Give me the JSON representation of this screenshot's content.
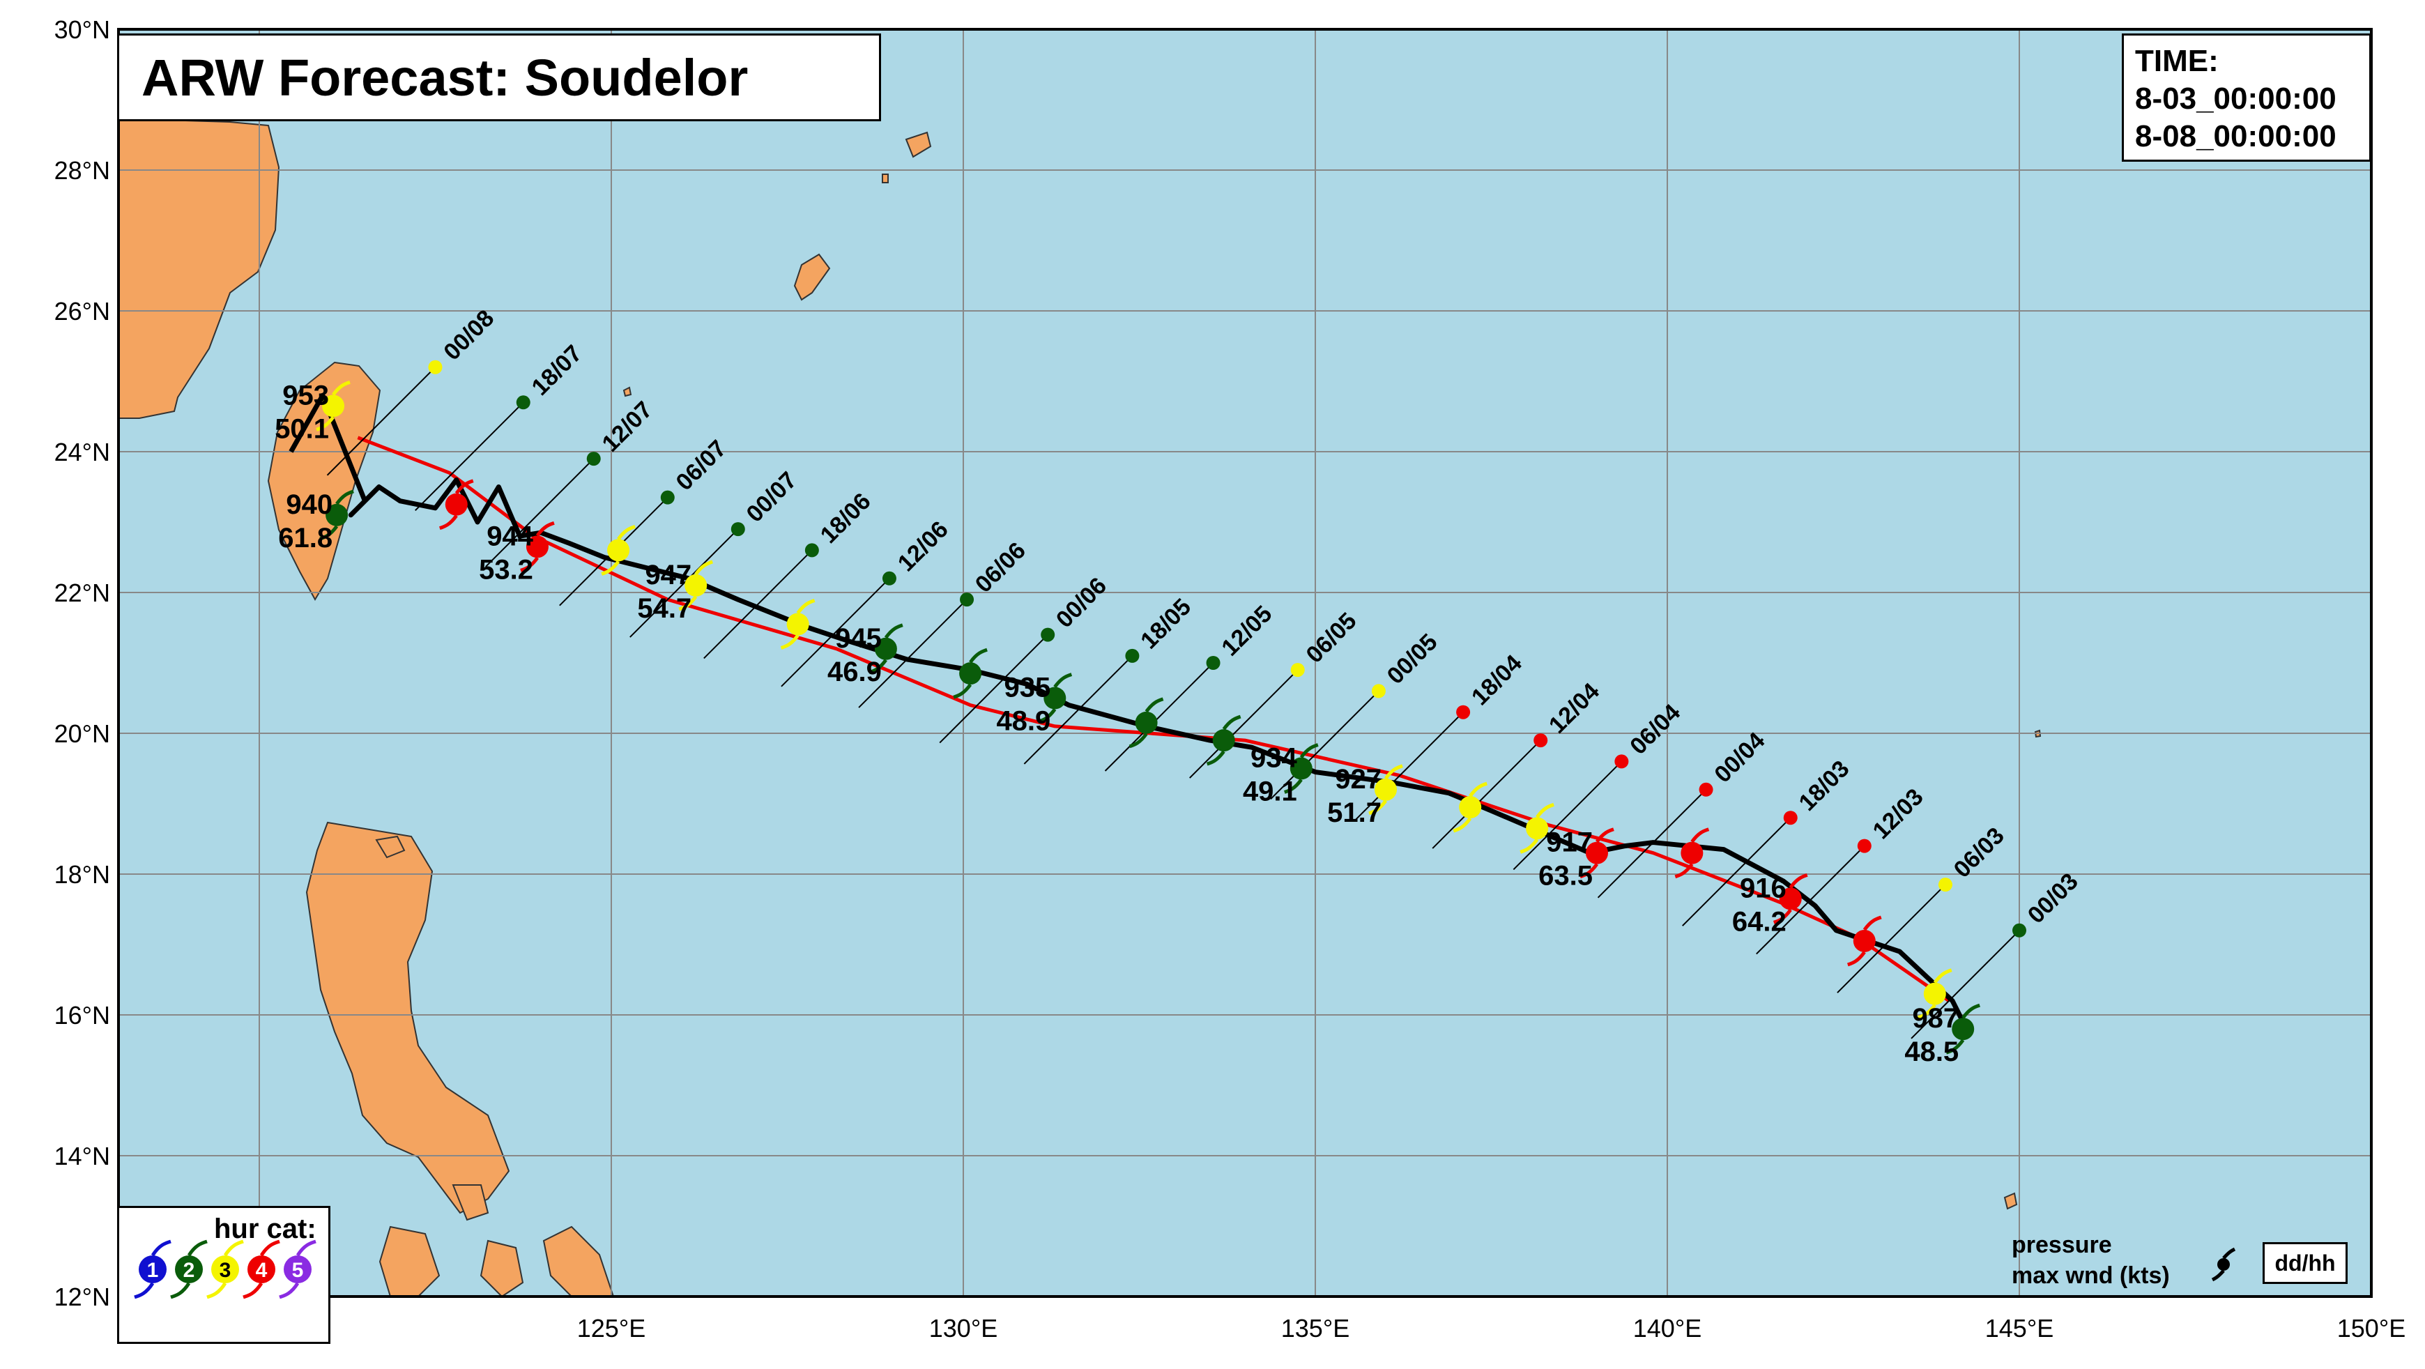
{
  "title": "ARW Forecast: Soudelor",
  "time_box": {
    "label": "TIME:",
    "start": "8-03_00:00:00",
    "end": "8-08_00:00:00"
  },
  "lat_labels": [
    "12°N",
    "14°N",
    "16°N",
    "18°N",
    "20°N",
    "22°N",
    "24°N",
    "26°N",
    "28°N",
    "30°N"
  ],
  "lon_labels": [
    "120°E",
    "125°E",
    "130°E",
    "135°E",
    "140°E",
    "145°E",
    "150°E"
  ],
  "legend": {
    "title": "hur cat:",
    "categories": [
      "1",
      "2",
      "3",
      "4",
      "5"
    ],
    "category_colors": [
      "#1010d0",
      "#0a5c0a",
      "#f4f400",
      "#ee0000",
      "#8a2be2"
    ]
  },
  "key": {
    "line1": "pressure",
    "line2": "max wnd (kts)",
    "time_fmt": "dd/hh"
  },
  "colors": {
    "ocean": "#add8e6",
    "land": "#f4a460",
    "grid": "#888888",
    "forecast_track": "#000000",
    "best_track": "#ee0000"
  },
  "forecast_points": [
    {
      "time": "00/03",
      "lat": 15.8,
      "lon": 144.2,
      "cat": 2,
      "pressure": "987",
      "wind": "48.5"
    },
    {
      "time": "06/03",
      "lat": 16.3,
      "lon": 143.8,
      "cat": 3
    },
    {
      "time": "12/03",
      "lat": 17.05,
      "lon": 142.8,
      "cat": 4
    },
    {
      "time": "18/03",
      "lat": 17.65,
      "lon": 141.75,
      "cat": 4,
      "pressure": "916",
      "wind": "64.2"
    },
    {
      "time": "00/04",
      "lat": 18.3,
      "lon": 140.35,
      "cat": 4
    },
    {
      "time": "06/04",
      "lat": 18.3,
      "lon": 139.0,
      "cat": 4,
      "pressure": "917",
      "wind": "63.5"
    },
    {
      "time": "12/04",
      "lat": 18.65,
      "lon": 138.15,
      "cat": 3
    },
    {
      "time": "18/04",
      "lat": 18.95,
      "lon": 137.2,
      "cat": 3
    },
    {
      "time": "00/05",
      "lat": 19.2,
      "lon": 136.0,
      "cat": 3,
      "pressure": "927",
      "wind": "51.7"
    },
    {
      "time": "06/05",
      "lat": 19.5,
      "lon": 134.8,
      "cat": 2,
      "pressure": "934",
      "wind": "49.1"
    },
    {
      "time": "12/05",
      "lat": 19.9,
      "lon": 133.7,
      "cat": 2
    },
    {
      "time": "18/05",
      "lat": 20.15,
      "lon": 132.6,
      "cat": 2
    },
    {
      "time": "00/06",
      "lat": 20.5,
      "lon": 131.3,
      "cat": 2,
      "pressure": "935",
      "wind": "48.9"
    },
    {
      "time": "06/06",
      "lat": 20.85,
      "lon": 130.1,
      "cat": 2
    },
    {
      "time": "12/06",
      "lat": 21.2,
      "lon": 128.9,
      "cat": 2,
      "pressure": "945",
      "wind": "46.9"
    },
    {
      "time": "18/06",
      "lat": 21.55,
      "lon": 127.65,
      "cat": 3
    },
    {
      "time": "00/07",
      "lat": 22.1,
      "lon": 126.2,
      "cat": 3,
      "pressure": "947",
      "wind": "54.7"
    },
    {
      "time": "06/07",
      "lat": 22.6,
      "lon": 125.1,
      "cat": 3
    },
    {
      "time": "12/07",
      "lat": 22.65,
      "lon": 123.95,
      "cat": 4,
      "pressure": "944",
      "wind": "53.2"
    },
    {
      "time": "18/07",
      "lat": 23.25,
      "lon": 122.8,
      "cat": 4
    },
    {
      "time": "00/08",
      "lat": 23.1,
      "lon": 121.1,
      "cat": 2,
      "pressure": "940",
      "wind": "61.8"
    },
    {
      "time": "00/08b",
      "lat": 24.65,
      "lon": 121.05,
      "cat": 3,
      "pressure": "953",
      "wind": "50.1"
    }
  ],
  "time_labels": [
    {
      "text": "00/03",
      "lat": 17.2,
      "lon": 145.0,
      "cat": 2
    },
    {
      "text": "06/03",
      "lat": 17.85,
      "lon": 143.95,
      "cat": 3
    },
    {
      "text": "12/03",
      "lat": 18.4,
      "lon": 142.8,
      "cat": 4
    },
    {
      "text": "18/03",
      "lat": 18.8,
      "lon": 141.75,
      "cat": 4
    },
    {
      "text": "00/04",
      "lat": 19.2,
      "lon": 140.55,
      "cat": 4
    },
    {
      "text": "06/04",
      "lat": 19.6,
      "lon": 139.35,
      "cat": 4
    },
    {
      "text": "12/04",
      "lat": 19.9,
      "lon": 138.2,
      "cat": 4
    },
    {
      "text": "18/04",
      "lat": 20.3,
      "lon": 137.1,
      "cat": 4
    },
    {
      "text": "00/05",
      "lat": 20.6,
      "lon": 135.9,
      "cat": 3
    },
    {
      "text": "06/05",
      "lat": 20.9,
      "lon": 134.75,
      "cat": 3
    },
    {
      "text": "12/05",
      "lat": 21.0,
      "lon": 133.55,
      "cat": 2
    },
    {
      "text": "18/05",
      "lat": 21.1,
      "lon": 132.4,
      "cat": 2
    },
    {
      "text": "00/06",
      "lat": 21.4,
      "lon": 131.2,
      "cat": 2
    },
    {
      "text": "06/06",
      "lat": 21.9,
      "lon": 130.05,
      "cat": 2
    },
    {
      "text": "12/06",
      "lat": 22.2,
      "lon": 128.95,
      "cat": 2
    },
    {
      "text": "18/06",
      "lat": 22.6,
      "lon": 127.85,
      "cat": 2
    },
    {
      "text": "00/07",
      "lat": 22.9,
      "lon": 126.8,
      "cat": 2
    },
    {
      "text": "06/07",
      "lat": 23.35,
      "lon": 125.8,
      "cat": 2
    },
    {
      "text": "12/07",
      "lat": 23.9,
      "lon": 124.75,
      "cat": 2
    },
    {
      "text": "18/07",
      "lat": 24.7,
      "lon": 123.75,
      "cat": 2
    },
    {
      "text": "00/08",
      "lat": 25.2,
      "lon": 122.5,
      "cat": 3
    }
  ],
  "best_track": [
    {
      "lat": 16.2,
      "lon": 144.0
    },
    {
      "lat": 17.1,
      "lon": 142.7
    },
    {
      "lat": 17.6,
      "lon": 141.6
    },
    {
      "lat": 18.3,
      "lon": 139.8
    },
    {
      "lat": 18.7,
      "lon": 138.3
    },
    {
      "lat": 19.4,
      "lon": 136.2
    },
    {
      "lat": 19.9,
      "lon": 134.0
    },
    {
      "lat": 20.1,
      "lon": 131.3
    },
    {
      "lat": 20.4,
      "lon": 130.1
    },
    {
      "lat": 21.2,
      "lon": 128.2
    },
    {
      "lat": 21.9,
      "lon": 125.8
    },
    {
      "lat": 22.8,
      "lon": 123.9
    },
    {
      "lat": 23.7,
      "lon": 122.7
    },
    {
      "lat": 24.2,
      "lon": 121.4
    }
  ],
  "forecast_track": [
    {
      "lat": 15.9,
      "lon": 144.2
    },
    {
      "lat": 16.2,
      "lon": 144.05
    },
    {
      "lat": 16.9,
      "lon": 143.3
    },
    {
      "lat": 17.2,
      "lon": 142.4
    },
    {
      "lat": 17.55,
      "lon": 142.1
    },
    {
      "lat": 17.9,
      "lon": 141.65
    },
    {
      "lat": 18.35,
      "lon": 140.8
    },
    {
      "lat": 18.45,
      "lon": 139.8
    },
    {
      "lat": 18.4,
      "lon": 139.4
    },
    {
      "lat": 18.3,
      "lon": 138.9
    },
    {
      "lat": 18.6,
      "lon": 138.2
    },
    {
      "lat": 18.9,
      "lon": 137.5
    },
    {
      "lat": 19.15,
      "lon": 136.9
    },
    {
      "lat": 19.3,
      "lon": 136.1
    },
    {
      "lat": 19.45,
      "lon": 135.0
    },
    {
      "lat": 19.8,
      "lon": 134.1
    },
    {
      "lat": 19.9,
      "lon": 133.5
    },
    {
      "lat": 20.1,
      "lon": 132.6
    },
    {
      "lat": 20.4,
      "lon": 131.5
    },
    {
      "lat": 20.7,
      "lon": 130.9
    },
    {
      "lat": 20.9,
      "lon": 130.1
    },
    {
      "lat": 21.05,
      "lon": 129.2
    },
    {
      "lat": 21.3,
      "lon": 128.4
    },
    {
      "lat": 21.5,
      "lon": 127.8
    },
    {
      "lat": 21.9,
      "lon": 126.8
    },
    {
      "lat": 22.2,
      "lon": 126.1
    },
    {
      "lat": 22.35,
      "lon": 125.5
    },
    {
      "lat": 22.5,
      "lon": 124.9
    },
    {
      "lat": 22.7,
      "lon": 124.4
    },
    {
      "lat": 22.85,
      "lon": 124.0
    },
    {
      "lat": 22.8,
      "lon": 123.7
    },
    {
      "lat": 23.5,
      "lon": 123.4
    },
    {
      "lat": 23.0,
      "lon": 123.1
    },
    {
      "lat": 23.6,
      "lon": 122.8
    },
    {
      "lat": 23.2,
      "lon": 122.5
    },
    {
      "lat": 23.3,
      "lon": 122.0
    },
    {
      "lat": 23.5,
      "lon": 121.7
    },
    {
      "lat": 23.1,
      "lon": 121.3
    },
    {
      "lat": 23.3,
      "lon": 121.5
    },
    {
      "lat": 24.8,
      "lon": 120.9
    },
    {
      "lat": 24.0,
      "lon": 120.45
    }
  ]
}
